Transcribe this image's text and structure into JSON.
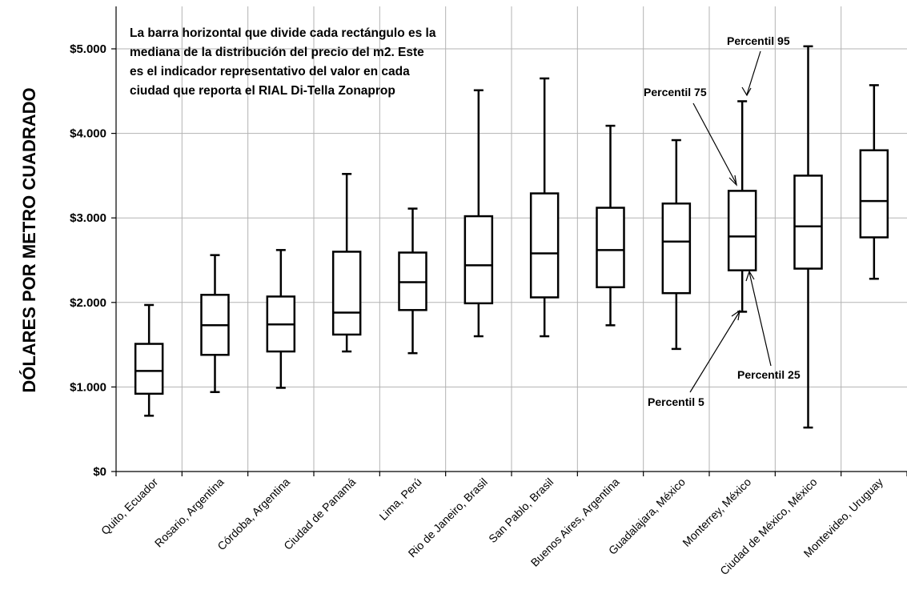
{
  "chart_data": {
    "type": "box",
    "ylabel": "DÓLARES POR METRO CUADRADO",
    "xlabel": "",
    "ylim": [
      0,
      5500
    ],
    "y_ticks": [
      0,
      1000,
      2000,
      3000,
      4000,
      5000
    ],
    "y_tick_labels": [
      "$0",
      "$1.000",
      "$2.000",
      "$3.000",
      "$4.000",
      "$5.000"
    ],
    "grid": "horizontal and vertical",
    "categories": [
      "Quito, Ecuador",
      "Rosario, Argentina",
      "Córdoba, Argentina",
      "Ciudad de Panamá",
      "Lima, Perú",
      "Rio de Janeiro, Brasil",
      "San Pablo, Brasil",
      "Buenos Aires, Argentina",
      "Guadalajara, México",
      "Monterrey, México",
      "Ciudad de México, México",
      "Montevideo, Uruguay"
    ],
    "boxes": [
      {
        "p5": 660,
        "p25": 920,
        "median": 1190,
        "p75": 1510,
        "p95": 1970
      },
      {
        "p5": 940,
        "p25": 1380,
        "median": 1730,
        "p75": 2090,
        "p95": 2560
      },
      {
        "p5": 990,
        "p25": 1420,
        "median": 1740,
        "p75": 2070,
        "p95": 2620
      },
      {
        "p5": 1420,
        "p25": 1620,
        "median": 1880,
        "p75": 2600,
        "p95": 3520
      },
      {
        "p5": 1400,
        "p25": 1910,
        "median": 2240,
        "p75": 2590,
        "p95": 3110
      },
      {
        "p5": 1600,
        "p25": 1990,
        "median": 2440,
        "p75": 3020,
        "p95": 4510
      },
      {
        "p5": 1600,
        "p25": 2060,
        "median": 2580,
        "p75": 3290,
        "p95": 4650
      },
      {
        "p5": 1730,
        "p25": 2180,
        "median": 2620,
        "p75": 3120,
        "p95": 4090
      },
      {
        "p5": 1450,
        "p25": 2110,
        "median": 2720,
        "p75": 3170,
        "p95": 3920
      },
      {
        "p5": 1890,
        "p25": 2380,
        "median": 2780,
        "p75": 3320,
        "p95": 4380
      },
      {
        "p5": 520,
        "p25": 2400,
        "median": 2900,
        "p75": 3500,
        "p95": 5030
      },
      {
        "p5": 2280,
        "p25": 2770,
        "median": 3200,
        "p75": 3800,
        "p95": 4570
      }
    ],
    "note": [
      "La barra horizontal que divide cada rectángulo es la",
      "mediana de la distribución del precio del m2. Este",
      "es el indicador representativo del valor en cada",
      "ciudad que reporta el RIAL Di-Tella Zonaprop"
    ],
    "annotations": {
      "p95": "Percentil 95",
      "p75": "Percentil 75",
      "p25": "Percentil 25",
      "p5": "Percentil 5"
    }
  }
}
